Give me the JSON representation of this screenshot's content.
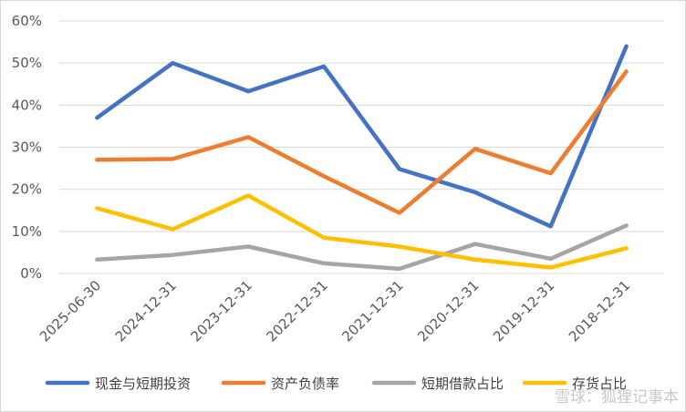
{
  "chart_data": {
    "type": "line",
    "title": "",
    "xlabel": "",
    "ylabel": "",
    "ylim": [
      0,
      60
    ],
    "y_ticks": [
      "0%",
      "10%",
      "20%",
      "30%",
      "40%",
      "50%",
      "60%"
    ],
    "grid": true,
    "legend_position": "bottom",
    "categories": [
      "2025-06-30",
      "2024-12-31",
      "2023-12-31",
      "2022-12-31",
      "2021-12-31",
      "2020-12-31",
      "2019-12-31",
      "2018-12-31"
    ],
    "series": [
      {
        "name": "现金与短期投资",
        "color": "#4472c4",
        "values": [
          37,
          50,
          43.3,
          49.2,
          24.8,
          19.3,
          11.2,
          54
        ]
      },
      {
        "name": "资产负债率",
        "color": "#ed7d31",
        "values": [
          27,
          27.2,
          32.4,
          23.1,
          14.4,
          29.6,
          23.8,
          48
        ]
      },
      {
        "name": "短期借款占比",
        "color": "#a5a5a5",
        "values": [
          3.3,
          4.4,
          6.4,
          2.4,
          1.1,
          7,
          3.5,
          11.4
        ]
      },
      {
        "name": "存货占比",
        "color": "#ffc000",
        "values": [
          15.5,
          10.5,
          18.5,
          8.5,
          6.4,
          3.3,
          1.4,
          6
        ]
      }
    ]
  },
  "watermark": "雪球：狐狸记事本"
}
